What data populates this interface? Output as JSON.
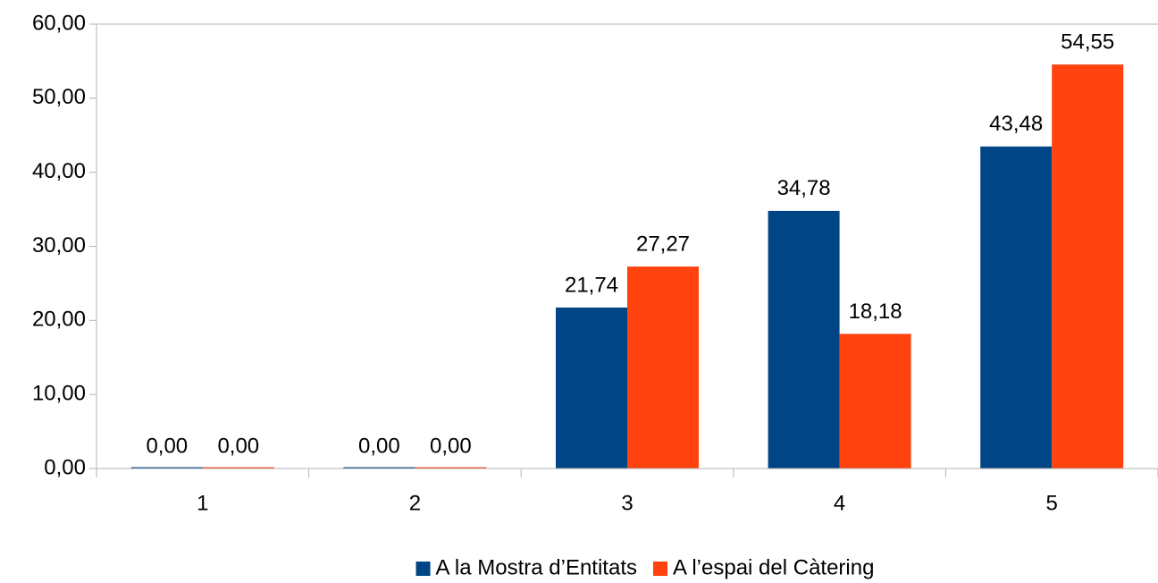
{
  "chart_data": {
    "type": "bar",
    "categories": [
      "1",
      "2",
      "3",
      "4",
      "5"
    ],
    "series": [
      {
        "name": "A la Mostra d’Entitats",
        "color": "#004586",
        "values": [
          0,
          0,
          21.74,
          34.78,
          43.48
        ],
        "value_labels": [
          "0,00",
          "0,00",
          "21,74",
          "34,78",
          "43,48"
        ]
      },
      {
        "name": "A l’espai del Càtering",
        "color": "#ff420e",
        "values": [
          0,
          0,
          27.27,
          18.18,
          54.55
        ],
        "value_labels": [
          "0,00",
          "0,00",
          "27,27",
          "18,18",
          "54,55"
        ]
      }
    ],
    "ylim": [
      0,
      60
    ],
    "yticks": [
      {
        "value": 0,
        "label": "0,00"
      },
      {
        "value": 10,
        "label": "10,00"
      },
      {
        "value": 20,
        "label": "20,00"
      },
      {
        "value": 30,
        "label": "30,00"
      },
      {
        "value": 40,
        "label": "40,00"
      },
      {
        "value": 50,
        "label": "50,00"
      },
      {
        "value": 60,
        "label": "60,00"
      }
    ],
    "grid": false,
    "legend": "bottom"
  }
}
